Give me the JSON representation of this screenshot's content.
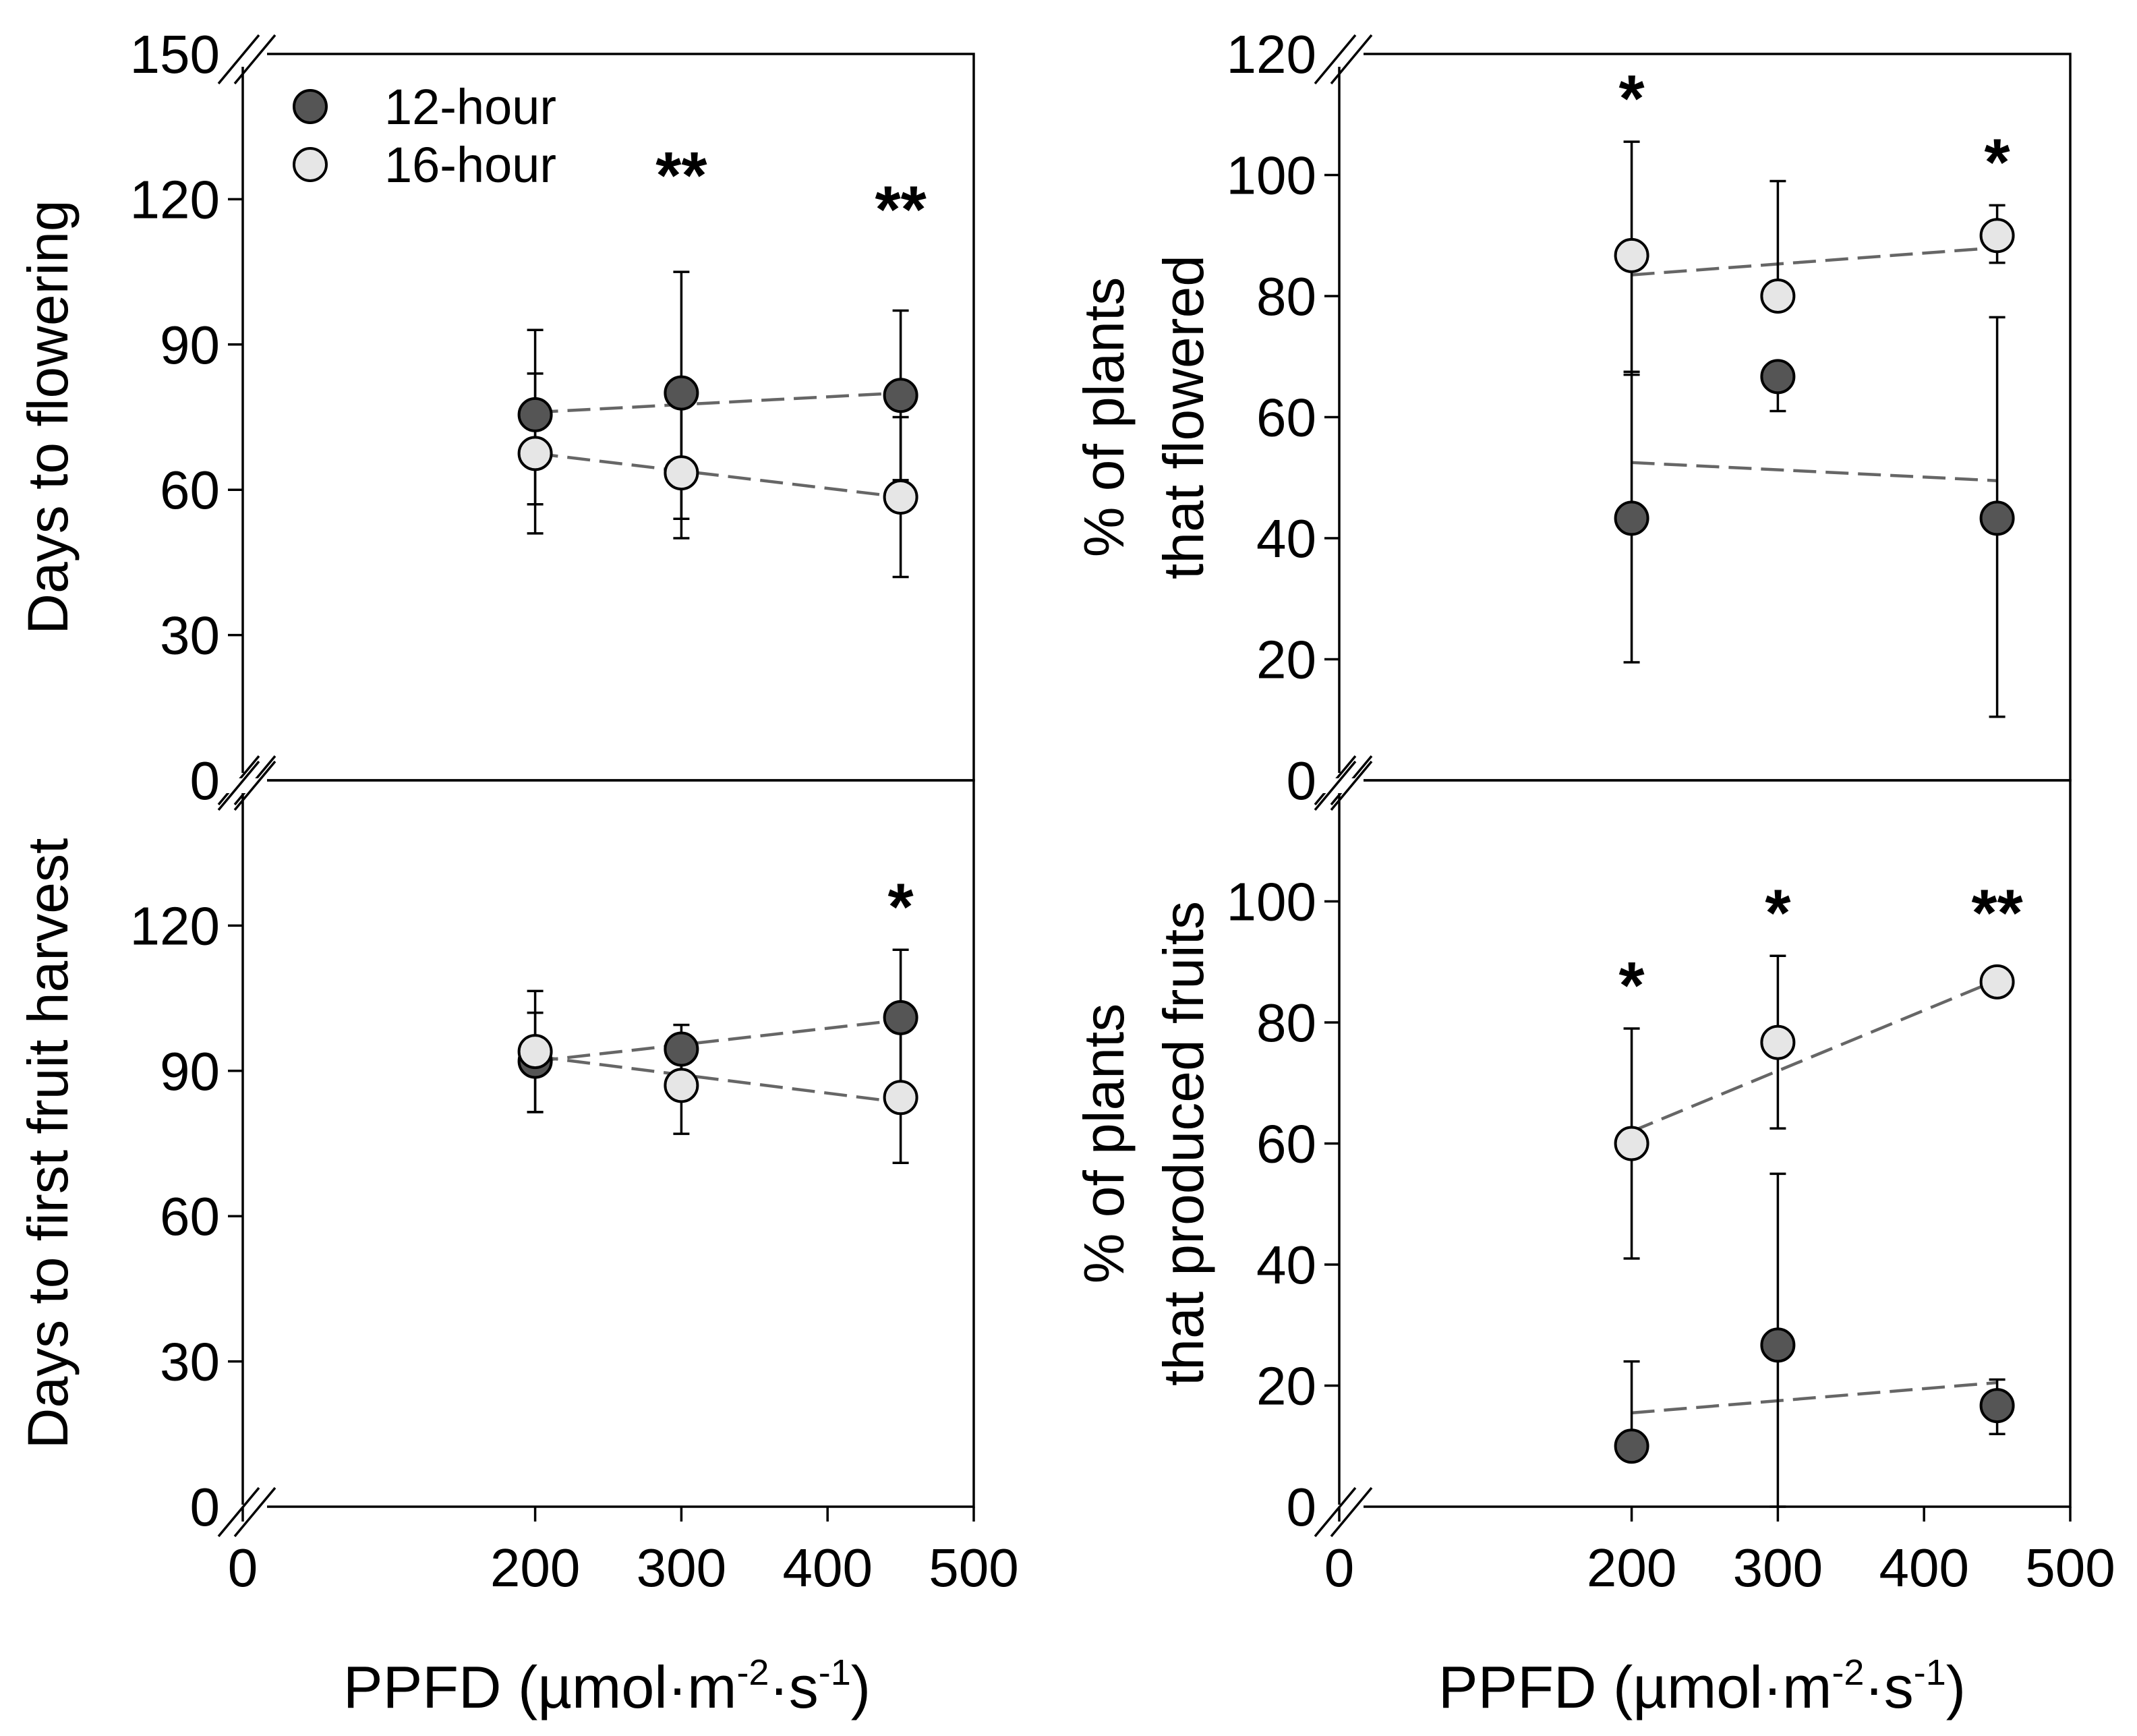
{
  "chart_data": [
    {
      "type": "scatter",
      "panel": "top-left",
      "title": "",
      "xlabel": "",
      "ylabel": "Days to flowering",
      "xlim": [
        0,
        500
      ],
      "ylim": [
        0,
        150
      ],
      "yticks": [
        0,
        30,
        60,
        90,
        120,
        150
      ],
      "xticks": [],
      "show_x_break": false,
      "legend": {
        "position": "top-left",
        "entries": [
          {
            "name": "12-hour",
            "color": "#555555"
          },
          {
            "name": "16-hour",
            "color": "#e6e6e6"
          }
        ]
      },
      "series": [
        {
          "name": "12-hour",
          "color": "#555555",
          "x": [
            200,
            300,
            450
          ],
          "y": [
            75.5,
            80,
            79.5
          ],
          "err_low": [
            57,
            54,
            62
          ],
          "err_high": [
            93,
            105,
            97
          ],
          "trend": [
            [
              200,
              76
            ],
            [
              450,
              80
            ]
          ]
        },
        {
          "name": "16-hour",
          "color": "#e6e6e6",
          "x": [
            200,
            300,
            450
          ],
          "y": [
            67.5,
            63.5,
            58.5
          ],
          "err_low": [
            51,
            50,
            42
          ],
          "err_high": [
            84,
            77,
            75
          ],
          "trend": [
            [
              200,
              67.5
            ],
            [
              450,
              58.5
            ]
          ]
        }
      ],
      "annotations": [
        {
          "x": 300,
          "y": 116,
          "text": "**"
        },
        {
          "x": 450,
          "y": 109,
          "text": "**"
        }
      ]
    },
    {
      "type": "scatter",
      "panel": "top-right",
      "title": "",
      "xlabel": "",
      "ylabel": [
        "% of plants",
        "that flowered"
      ],
      "xlim": [
        0,
        500
      ],
      "ylim": [
        0,
        120
      ],
      "yticks": [
        0,
        20,
        40,
        60,
        80,
        100,
        120
      ],
      "xticks": [],
      "show_x_break": false,
      "series": [
        {
          "name": "12-hour",
          "color": "#555555",
          "x": [
            200,
            300,
            450
          ],
          "y": [
            43.3,
            66.7,
            43.3
          ],
          "err_low": [
            19.5,
            61,
            10.5
          ],
          "err_high": [
            67.5,
            66.7,
            76.5
          ],
          "trend": [
            [
              200,
              52.5
            ],
            [
              450,
              49.5
            ]
          ]
        },
        {
          "name": "16-hour",
          "color": "#e6e6e6",
          "x": [
            200,
            300,
            450
          ],
          "y": [
            86.7,
            80,
            90
          ],
          "err_low": [
            67,
            80,
            85.5
          ],
          "err_high": [
            105.5,
            99,
            95
          ],
          "trend": [
            [
              200,
              83.5
            ],
            [
              450,
              88
            ]
          ]
        }
      ],
      "annotations": [
        {
          "x": 200,
          "y": 105.5,
          "text": "*"
        },
        {
          "x": 450,
          "y": 95,
          "text": "*"
        }
      ]
    },
    {
      "type": "scatter",
      "panel": "bottom-left",
      "title": "",
      "xlabel": "PPFD (µmol·m-2·s-1)",
      "ylabel": "Days to first fruit harvest",
      "xlim": [
        0,
        500
      ],
      "ylim": [
        0,
        150
      ],
      "yticks": [
        0,
        30,
        60,
        90,
        120
      ],
      "xticks": [
        0,
        200,
        300,
        400,
        500
      ],
      "show_x_break": true,
      "series": [
        {
          "name": "12-hour",
          "color": "#555555",
          "x": [
            200,
            300,
            450
          ],
          "y": [
            92,
            94.5,
            101
          ],
          "err_low": [
            81.5,
            89.5,
            87
          ],
          "err_high": [
            102,
            99.5,
            115
          ],
          "trend": [
            [
              200,
              92
            ],
            [
              450,
              100.5
            ]
          ]
        },
        {
          "name": "16-hour",
          "color": "#e6e6e6",
          "x": [
            200,
            300,
            450
          ],
          "y": [
            94,
            87,
            84.5
          ],
          "err_low": [
            81.5,
            77,
            71
          ],
          "err_high": [
            106.5,
            97,
            98
          ],
          "trend": [
            [
              200,
              93
            ],
            [
              450,
              83.5
            ]
          ]
        }
      ],
      "annotations": [
        {
          "x": 450,
          "y": 115,
          "text": "*"
        }
      ]
    },
    {
      "type": "scatter",
      "panel": "bottom-right",
      "title": "",
      "xlabel": "PPFD (µmol·m-2·s-1)",
      "ylabel": [
        "% of plants",
        "that produced fruits"
      ],
      "xlim": [
        0,
        500
      ],
      "ylim": [
        0,
        120
      ],
      "yticks": [
        0,
        20,
        40,
        60,
        80,
        100
      ],
      "xticks": [
        0,
        200,
        300,
        400,
        500
      ],
      "show_x_break": true,
      "series": [
        {
          "name": "12-hour",
          "color": "#555555",
          "x": [
            200,
            300,
            450
          ],
          "y": [
            10,
            26.7,
            16.7
          ],
          "err_low": [
            10,
            0,
            12
          ],
          "err_high": [
            24,
            55,
            21
          ],
          "trend": [
            [
              200,
              15.5
            ],
            [
              450,
              20.5
            ]
          ]
        },
        {
          "name": "16-hour",
          "color": "#e6e6e6",
          "x": [
            200,
            300,
            450
          ],
          "y": [
            60,
            76.7,
            86.7
          ],
          "err_low": [
            41,
            62.5,
            86.7
          ],
          "err_high": [
            79,
            91,
            86.7
          ],
          "trend": [
            [
              200,
              62
            ],
            [
              450,
              87
            ]
          ]
        }
      ],
      "annotations": [
        {
          "x": 200,
          "y": 79,
          "text": "*"
        },
        {
          "x": 300,
          "y": 91,
          "text": "*"
        },
        {
          "x": 450,
          "y": 91,
          "text": "**"
        }
      ]
    }
  ],
  "x_axis_title": {
    "main": "PPFD (µmol·m",
    "exp1": "-2",
    "middle": "·s",
    "exp2": "-1",
    "close": ")"
  }
}
